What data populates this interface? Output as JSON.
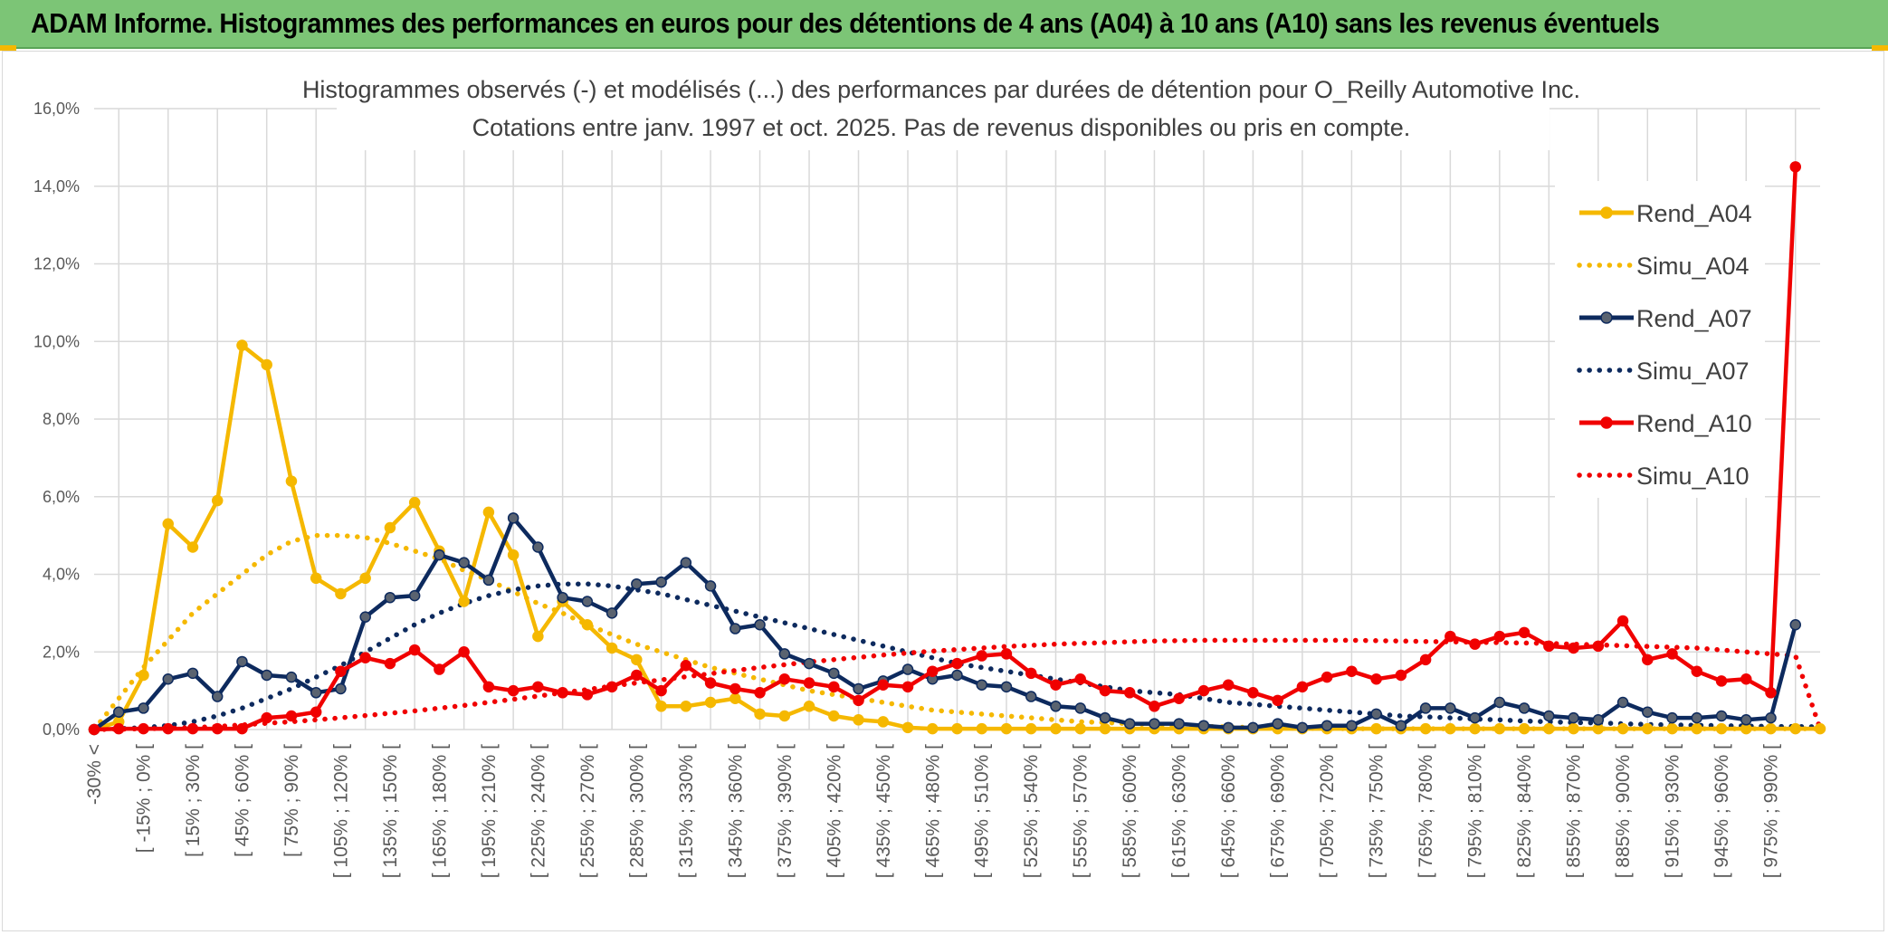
{
  "banner": {
    "title": "ADAM Informe. Histogrammes des performances en euros pour des détentions de 4 ans (A04) à 10 ans (A10) sans les revenus éventuels",
    "color": "#7cc576"
  },
  "chart_data": {
    "type": "line",
    "title": "Histogrammes observés (-) et modélisés (...) des performances par durées de détention pour O_Reilly Automotive Inc.",
    "subtitle": "Cotations entre janv. 1997 et oct. 2025. Pas de revenus disponibles ou pris en compte.",
    "xlabel": "",
    "ylabel": "",
    "ylim": [
      0,
      16
    ],
    "yticks": [
      "0,0%",
      "2,0%",
      "4,0%",
      "6,0%",
      "8,0%",
      "10,0%",
      "12,0%",
      "14,0%",
      "16,0%"
    ],
    "grid": true,
    "legend_position": "right",
    "x_labels": [
      "-30% <",
      "[ -15% ; 0% [",
      "[ 15% ; 30% [",
      "[ 45% ; 60% [",
      "[ 75% ; 90% [",
      "[ 105% ; 120% [",
      "[ 135% ; 150% [",
      "[ 165% ; 180% [",
      "[ 195% ; 210% [",
      "[ 225% ; 240% [",
      "[ 255% ; 270% [",
      "[ 285% ; 300% [",
      "[ 315% ; 330% [",
      "[ 345% ; 360% [",
      "[ 375% ; 390% [",
      "[ 405% ; 420% [",
      "[ 435% ; 450% [",
      "[ 465% ; 480% [",
      "[ 495% ; 510% [",
      "[ 525% ; 540% [",
      "[ 555% ; 570% [",
      "[ 585% ; 600% [",
      "[ 615% ; 630% [",
      "[ 645% ; 660% [",
      "[ 675% ; 690% [",
      "[ 705% ; 720% [",
      "[ 735% ; 750% [",
      "[ 765% ; 780% [",
      "[ 795% ; 810% [",
      "[ 825% ; 840% [",
      "[ 855% ; 870% [",
      "[ 885% ; 900% [",
      "[ 915% ; 930% [",
      "[ 945% ; 960% [",
      "[ 975% ; 990% ["
    ],
    "series": [
      {
        "name": "Rend_A04",
        "style": "solid",
        "marker": true,
        "color": "#f5b800",
        "values": [
          0,
          0.2,
          1.4,
          5.3,
          4.7,
          5.9,
          9.9,
          9.4,
          6.4,
          3.9,
          3.5,
          3.9,
          5.2,
          5.85,
          4.6,
          3.3,
          5.6,
          4.5,
          2.4,
          3.3,
          2.7,
          2.1,
          1.8,
          0.6,
          0.6,
          0.7,
          0.8,
          0.4,
          0.35,
          0.6,
          0.35,
          0.25,
          0.2,
          0.05,
          0.02,
          0.02,
          0.02,
          0.02,
          0.02,
          0.02,
          0.02,
          0.02,
          0.02,
          0.02,
          0.02,
          0.02,
          0.02,
          0.02,
          0.02,
          0.02,
          0.02,
          0.02,
          0.02,
          0.02,
          0.02,
          0.02,
          0.02,
          0.02,
          0.02,
          0.02,
          0.02,
          0.02,
          0.02,
          0.02,
          0.02,
          0.02,
          0.02,
          0.02,
          0.02,
          0.02,
          0.02
        ]
      },
      {
        "name": "Simu_A04",
        "style": "dotted",
        "marker": false,
        "color": "#f5b800",
        "values": [
          0,
          0.8,
          1.6,
          2.3,
          3.0,
          3.5,
          4.0,
          4.5,
          4.85,
          5.0,
          5.0,
          4.95,
          4.8,
          4.6,
          4.4,
          4.1,
          3.85,
          3.55,
          3.25,
          3.0,
          2.7,
          2.45,
          2.2,
          2.0,
          1.8,
          1.6,
          1.45,
          1.3,
          1.15,
          1.0,
          0.9,
          0.8,
          0.7,
          0.6,
          0.5,
          0.45,
          0.4,
          0.35,
          0.3,
          0.25,
          0.2,
          0.18,
          0.15,
          0.12,
          0.1,
          0.08,
          0.07,
          0.05,
          0.04,
          0.03,
          0.03,
          0.02,
          0.02,
          0.02,
          0.02,
          0.02,
          0.02,
          0.02,
          0.02,
          0.02,
          0.02,
          0.02,
          0.02,
          0.02,
          0.02,
          0.02,
          0.02,
          0.02,
          0.02,
          0.02,
          0.02
        ]
      },
      {
        "name": "Rend_A07",
        "style": "solid",
        "marker": true,
        "color": "#0d2a5e",
        "values": [
          0,
          0.45,
          0.55,
          1.3,
          1.45,
          0.85,
          1.75,
          1.4,
          1.35,
          0.95,
          1.05,
          2.9,
          3.4,
          3.45,
          4.5,
          4.3,
          3.85,
          5.45,
          4.7,
          3.4,
          3.3,
          3.0,
          3.75,
          3.8,
          4.3,
          3.7,
          2.6,
          2.7,
          1.95,
          1.7,
          1.45,
          1.05,
          1.25,
          1.55,
          1.3,
          1.4,
          1.15,
          1.1,
          0.85,
          0.6,
          0.55,
          0.3,
          0.15,
          0.15,
          0.15,
          0.1,
          0.05,
          0.05,
          0.15,
          0.05,
          0.1,
          0.1,
          0.4,
          0.1,
          0.55,
          0.55,
          0.3,
          0.7,
          0.55,
          0.35,
          0.3,
          0.25,
          0.7,
          0.45,
          0.3,
          0.3,
          0.35,
          0.25,
          0.3,
          2.7
        ]
      },
      {
        "name": "Simu_A07",
        "style": "dotted",
        "marker": false,
        "color": "#0d2a5e",
        "values": [
          0,
          0.02,
          0.05,
          0.1,
          0.2,
          0.35,
          0.55,
          0.8,
          1.05,
          1.35,
          1.65,
          2.0,
          2.35,
          2.7,
          3.0,
          3.25,
          3.45,
          3.6,
          3.7,
          3.75,
          3.75,
          3.7,
          3.6,
          3.5,
          3.35,
          3.2,
          3.05,
          2.9,
          2.75,
          2.6,
          2.45,
          2.3,
          2.15,
          2.0,
          1.85,
          1.7,
          1.6,
          1.5,
          1.4,
          1.3,
          1.2,
          1.1,
          1.0,
          0.95,
          0.9,
          0.8,
          0.7,
          0.65,
          0.6,
          0.55,
          0.5,
          0.45,
          0.4,
          0.35,
          0.33,
          0.3,
          0.27,
          0.25,
          0.22,
          0.2,
          0.18,
          0.17,
          0.15,
          0.13,
          0.12,
          0.11,
          0.1,
          0.09,
          0.08,
          0.08,
          0.07
        ]
      },
      {
        "name": "Rend_A10",
        "style": "solid",
        "marker": true,
        "color": "#f00000",
        "values": [
          0,
          0.02,
          0.02,
          0.02,
          0.02,
          0.02,
          0.02,
          0.3,
          0.35,
          0.45,
          1.5,
          1.85,
          1.7,
          2.05,
          1.55,
          2.0,
          1.1,
          1.0,
          1.1,
          0.95,
          0.9,
          1.1,
          1.4,
          1.0,
          1.65,
          1.2,
          1.05,
          0.95,
          1.3,
          1.2,
          1.1,
          0.75,
          1.15,
          1.1,
          1.5,
          1.7,
          1.9,
          1.95,
          1.45,
          1.15,
          1.3,
          1.0,
          0.95,
          0.6,
          0.8,
          1.0,
          1.15,
          0.95,
          0.75,
          1.1,
          1.35,
          1.5,
          1.3,
          1.4,
          1.8,
          2.4,
          2.2,
          2.4,
          2.5,
          2.15,
          2.1,
          2.15,
          2.8,
          1.8,
          1.95,
          1.5,
          1.25,
          1.3,
          0.95,
          14.5
        ]
      },
      {
        "name": "Simu_A10",
        "style": "dotted",
        "marker": false,
        "color": "#f00000",
        "values": [
          0,
          0.01,
          0.02,
          0.03,
          0.05,
          0.08,
          0.12,
          0.16,
          0.2,
          0.25,
          0.3,
          0.36,
          0.42,
          0.48,
          0.55,
          0.62,
          0.7,
          0.78,
          0.86,
          0.95,
          1.03,
          1.12,
          1.2,
          1.28,
          1.36,
          1.44,
          1.52,
          1.6,
          1.67,
          1.74,
          1.8,
          1.86,
          1.92,
          1.97,
          2.02,
          2.06,
          2.1,
          2.14,
          2.17,
          2.2,
          2.22,
          2.24,
          2.26,
          2.28,
          2.29,
          2.3,
          2.3,
          2.3,
          2.3,
          2.3,
          2.3,
          2.3,
          2.29,
          2.28,
          2.27,
          2.26,
          2.25,
          2.24,
          2.23,
          2.22,
          2.2,
          2.18,
          2.16,
          2.14,
          2.12,
          2.1,
          2.05,
          2.0,
          1.95,
          1.9,
          0.02
        ]
      }
    ]
  }
}
